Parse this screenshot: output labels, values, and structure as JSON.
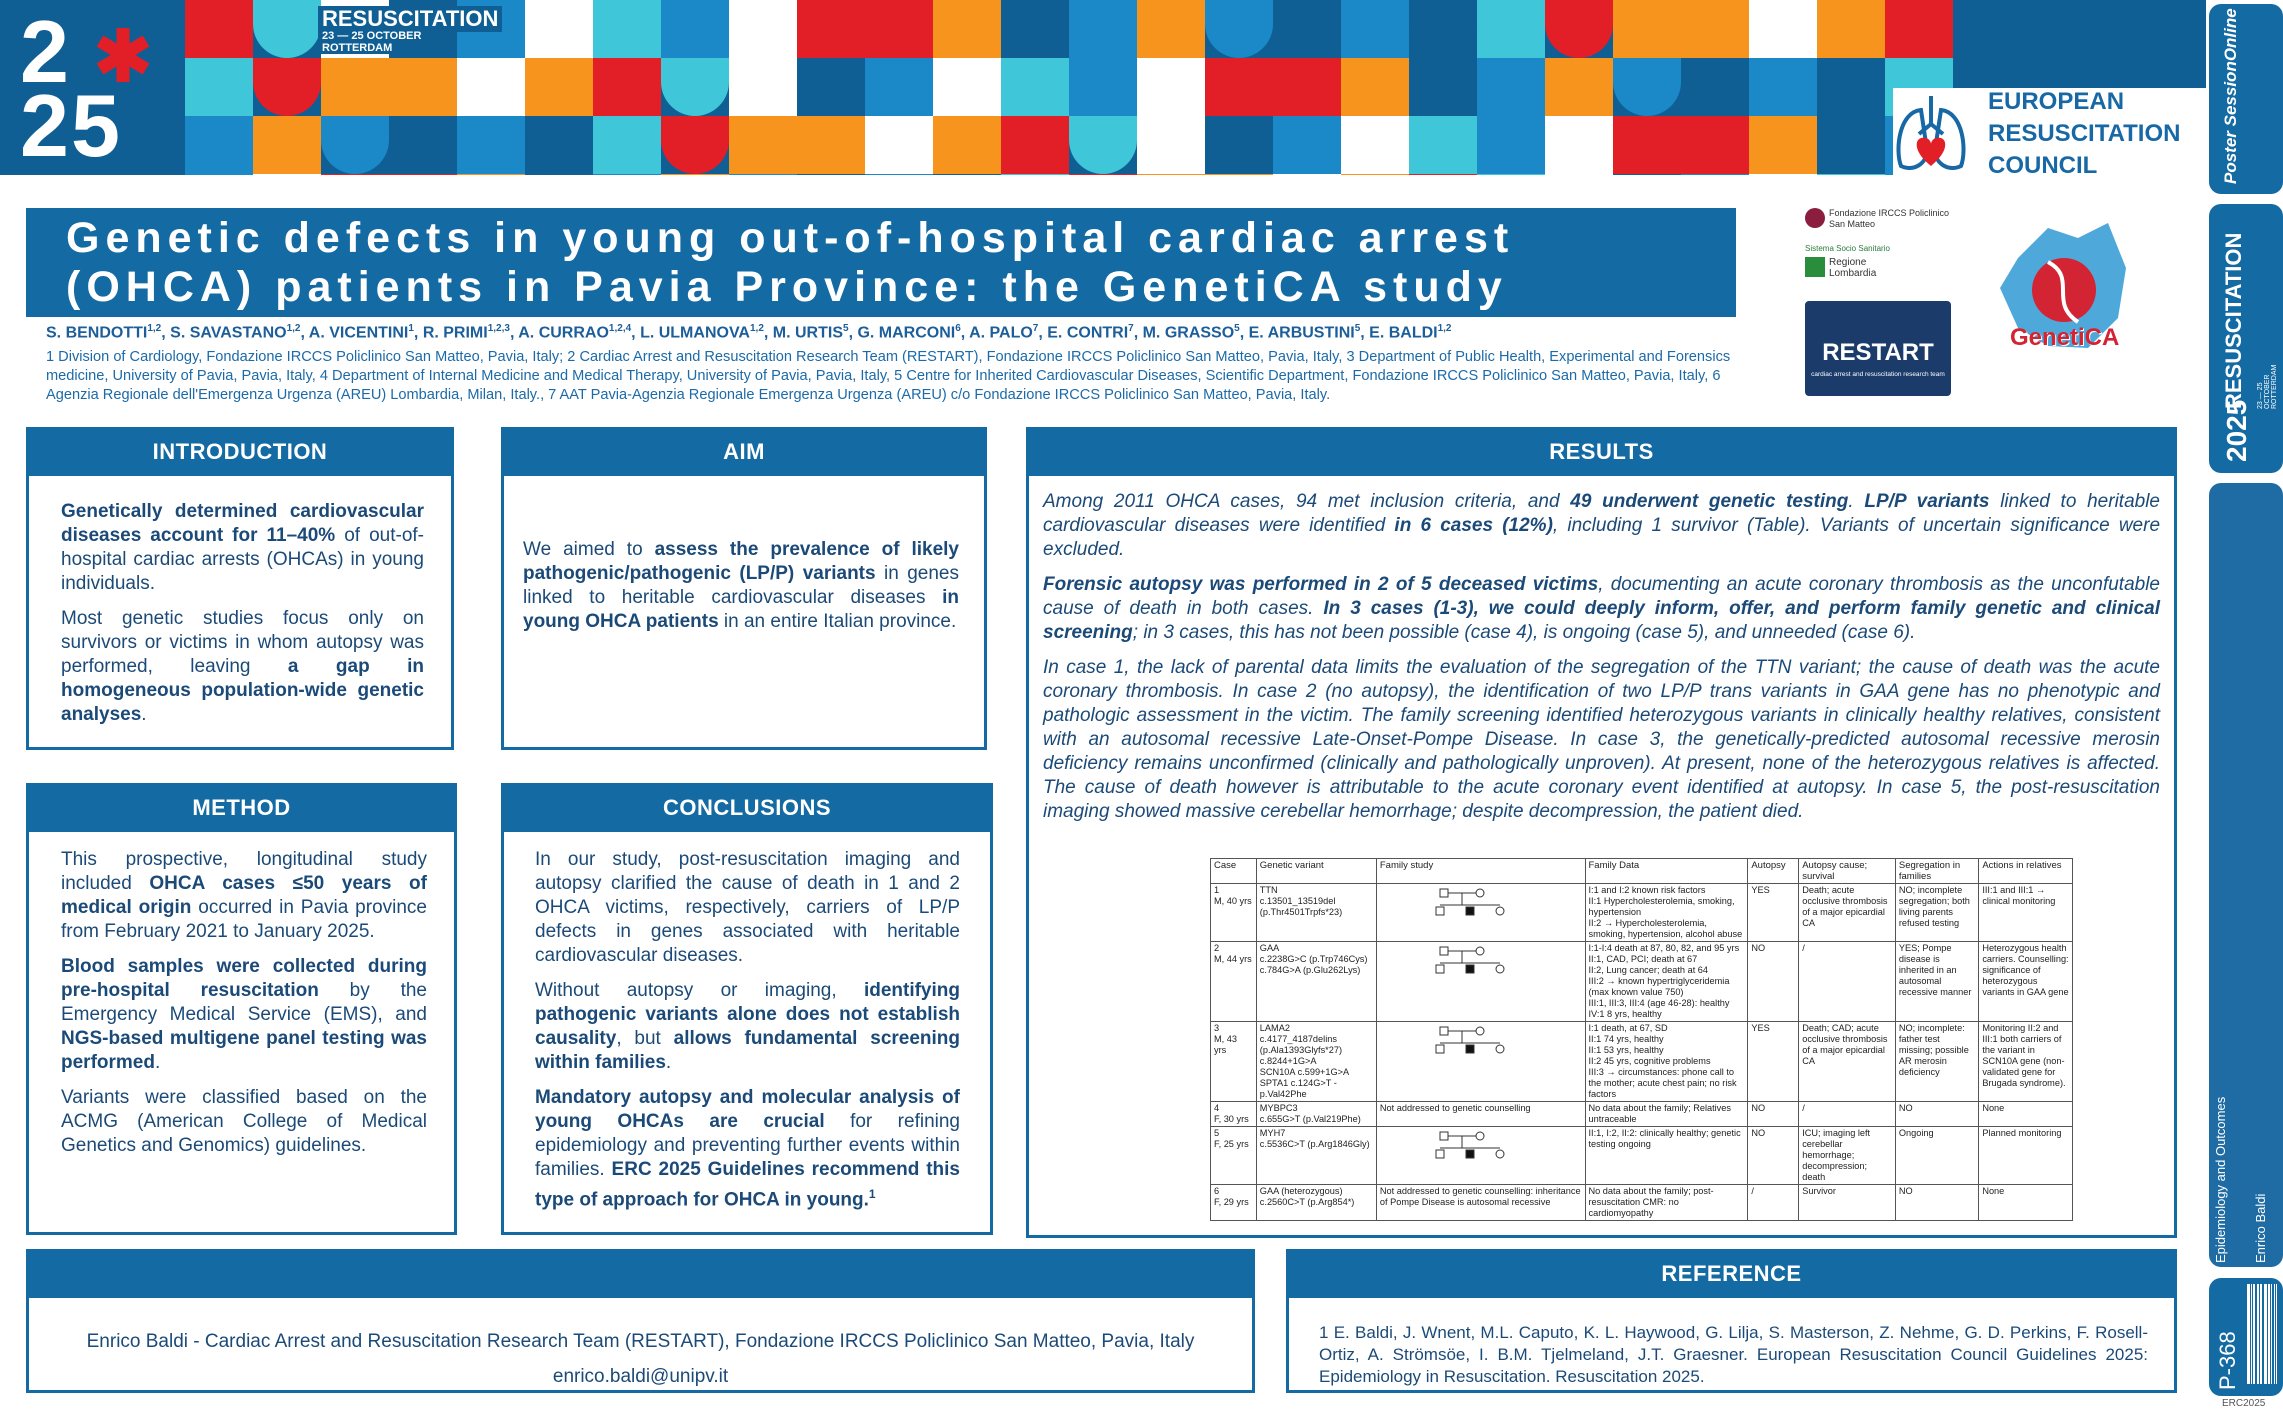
{
  "banner": {
    "year_top": "2",
    "year_bottom": "25",
    "event": "RESUSCITATION",
    "dates": "23 — 25 OCTOBER",
    "city": "ROTTERDAM"
  },
  "erc": {
    "line1": "EUROPEAN",
    "line2": "RESUSCITATION",
    "line3": "COUNCIL"
  },
  "title": {
    "line1": "Genetic defects in young out-of-hospital cardiac arrest",
    "line2": "(OHCA) patients in Pavia Province: the GenetiCA study"
  },
  "authors": [
    "S. BENDOTTI",
    {
      "sup": "1,2"
    },
    ", S. SAVASTANO",
    {
      "sup": "1,2"
    },
    ", A. VICENTINI",
    {
      "sup": "1"
    },
    ", R. PRIMI",
    {
      "sup": "1,2,3"
    },
    ", A. CURRAO",
    {
      "sup": "1,2,4"
    },
    ", L. ULMANOVA",
    {
      "sup": "1,2"
    },
    ", M. URTIS",
    {
      "sup": "5"
    },
    ", G. MARCONI",
    {
      "sup": "6"
    },
    ", A. PALO",
    {
      "sup": "7"
    },
    ", E. CONTRI",
    {
      "sup": "7"
    },
    ", M. GRASSO",
    {
      "sup": "5"
    },
    ", E. ARBUSTINI",
    {
      "sup": "5"
    },
    ", E. BALDI",
    {
      "sup": "1,2"
    }
  ],
  "affiliations": "1 Division of Cardiology, Fondazione IRCCS Policlinico San Matteo, Pavia, Italy; 2 Cardiac Arrest and Resuscitation Research Team (RESTART), Fondazione IRCCS Policlinico San Matteo, Pavia, Italy, 3 Department of Public Health, Experimental and Forensics medicine, University of Pavia, Pavia, Italy, 4 Department of Internal Medicine and Medical Therapy, University of Pavia, Pavia, Italy, 5 Centre for Inherited Cardiovascular Diseases, Scientific Department, Fondazione IRCCS Policlinico San Matteo, Pavia, Italy, 6 Agenzia Regionale dell'Emergenza Urgenza (AREU) Lombardia, Milan, Italy., 7 AAT Pavia-Agenzia Regionale Emergenza Urgenza (AREU) c/o Fondazione IRCCS Policlinico San Matteo, Pavia, Italy.",
  "logos": {
    "fondazione": "Fondazione IRCCS Policlinico San Matteo",
    "sistema": "Sistema Socio Sanitario",
    "regione": "Regione Lombardia",
    "restart": "RESTART",
    "restart_sub": "cardiac arrest and resuscitation research team",
    "genetica": "GenetiCA"
  },
  "introduction": {
    "heading": "INTRODUCTION",
    "paragraphs": [
      [
        {
          "b": "Genetically determined cardiovascular diseases account for 11–40%"
        },
        " of out-of-hospital cardiac arrests (OHCAs) in young individuals."
      ],
      [
        "Most genetic studies focus only on survivors or victims in whom autopsy was performed, leaving ",
        {
          "b": "a gap in homogeneous population-wide genetic analyses"
        },
        "."
      ]
    ]
  },
  "aim": {
    "heading": "AIM",
    "paragraphs": [
      [
        "We aimed to ",
        {
          "b": "assess the prevalence of likely pathogenic/pathogenic (LP/P) variants"
        },
        " in genes linked to heritable cardiovascular diseases ",
        {
          "b": "in young OHCA patients"
        },
        " in an entire Italian province."
      ]
    ]
  },
  "method": {
    "heading": "METHOD",
    "paragraphs": [
      [
        "This prospective, longitudinal study included ",
        {
          "b": "OHCA cases ≤50 years of medical origin"
        },
        " occurred in Pavia province from February 2021 to January 2025."
      ],
      [
        {
          "b": "Blood samples were collected during pre-hospital resuscitation"
        },
        " by the Emergency Medical Service (EMS), and ",
        {
          "b": "NGS-based multigene panel testing was performed"
        },
        "."
      ],
      [
        "Variants were classified based on the ACMG (American College of Medical Genetics and Genomics) guidelines."
      ]
    ]
  },
  "conclusions": {
    "heading": "CONCLUSIONS",
    "paragraphs": [
      [
        "In our study, post-resuscitation imaging and autopsy clarified the cause of death in 1 and 2 OHCA victims, respectively, carriers of LP/P defects in genes associated with heritable cardiovascular diseases."
      ],
      [
        "Without autopsy or imaging, ",
        {
          "b": "identifying pathogenic variants alone does not establish causality"
        },
        ", but ",
        {
          "b": "allows fundamental screening within families"
        },
        "."
      ],
      [
        {
          "b": "Mandatory autopsy and molecular analysis of young OHCAs are crucial"
        },
        " for refining epidemiology and preventing further events within families. ",
        {
          "b": "ERC 2025 Guidelines recommend this type of approach for OHCA in young."
        },
        {
          "sup": "1"
        }
      ]
    ]
  },
  "results": {
    "heading": "RESULTS",
    "paragraphs": [
      [
        "Among 2011 OHCA cases, 94 met inclusion criteria, and ",
        {
          "b": "49 underwent genetic testing"
        },
        ". ",
        {
          "b": "LP/P variants"
        },
        " linked to heritable cardiovascular diseases were identified ",
        {
          "b": "in 6 cases (12%)"
        },
        ", including 1 survivor (Table). Variants of uncertain significance were excluded."
      ],
      [
        {
          "b": "Forensic autopsy was performed in 2 of 5 deceased victims"
        },
        ", documenting an acute coronary thrombosis as the unconfutable cause of death in both cases. ",
        {
          "b": "In 3 cases (1-3), we could deeply inform, offer, and perform family genetic and clinical screening"
        },
        "; in 3 cases, this has not been possible (case 4), is ongoing (case 5), and unneeded (case 6)."
      ],
      [
        "In case 1, the lack of parental data limits the evaluation of the segregation of the TTN variant; the cause of death was the acute coronary thrombosis. In case 2 (no autopsy), the identification of two LP/P trans variants in GAA gene has no phenotypic and pathologic assessment in the victim. The family screening identified heterozygous variants in clinically healthy relatives, consistent with an autosomal recessive Late-Onset-Pompe Disease. In case 3, the genetically-predicted autosomal recessive merosin deficiency remains unconfirmed (clinically and pathologically unproven). At present, none of the heterozygous relatives is affected. The cause of death however is attributable to the acute coronary event identified at autopsy. In case 5, the post-resuscitation imaging showed massive cerebellar hemorrhage; despite decompression, the patient died."
      ]
    ],
    "table": {
      "header": [
        "Case",
        "Genetic variant",
        "Family study",
        "Family Data",
        "Autopsy",
        "Autopsy cause; survival",
        "Segregation in families",
        "Actions in relatives"
      ],
      "rows": [
        [
          "1\nM, 40 yrs",
          "TTN\nc.13501_13519del\n(p.Thr4501Trpfs*23)",
          null,
          "I:1 and I:2 known risk factors\nII:1 Hypercholesterolemia, smoking, hypertension\nII:2 → Hypercholesterolemia, smoking, hypertension, alcohol abuse",
          "YES",
          "Death; acute occlusive thrombosis of a major epicardial CA",
          "NO; incomplete segregation; both living parents refused testing",
          "III:1 and III:1 → clinical monitoring"
        ],
        [
          "2\nM, 44 yrs",
          "GAA\nc.2238G>C (p.Trp746Cys)\nc.784G>A (p.Glu262Lys)",
          null,
          "I:1-I:4 death at 87, 80, 82, and 95 yrs\nII:1, CAD, PCI; death at 67\nII:2, Lung cancer; death at 64\nIII:2 → known hypertriglyceridemia (max known value 750)\nIII:1, III:3, III:4 (age 46-28): healthy\nIV:1 8 yrs, healthy",
          "NO",
          "/",
          "YES; Pompe disease is inherited in an autosomal recessive manner",
          "Heterozygous health carriers. Counselling: significance of heterozygous variants in GAA gene"
        ],
        [
          "3\nM, 43\nyrs",
          "LAMA2\nc.4177_4187delins\n(p.Ala1393Glyfs*27)\nc.8244+1G>A\nSCN10A c.599+1G>A\nSPTA1 c.124G>T -\np.Val42Phe",
          null,
          "I:1 death, at 67, SD\nII:1 74 yrs, healthy\nII:1 53 yrs, healthy\nII:2 45 yrs, cognitive problems\nIII:3 → circumstances: phone call to the mother; acute chest pain; no risk factors",
          "YES",
          "Death; CAD; acute occlusive thrombosis of a major epicardial CA",
          "NO; incomplete: father test missing; possible AR merosin deficiency",
          "Monitoring II:2 and III:1 both carriers of the variant in SCN10A gene (non-validated gene for Brugada syndrome)."
        ],
        [
          "4\nF, 30 yrs",
          "MYBPC3\nc.655G>T (p.Val219Phe)",
          "Not addressed to genetic counselling",
          "No data about the family; Relatives untraceable",
          "NO",
          "/",
          "NO",
          "None"
        ],
        [
          "5\nF, 25 yrs",
          "MYH7\nc.5536C>T (p.Arg1846Gly)",
          null,
          "II:1, I:2, II:2: clinically healthy; genetic testing ongoing",
          "NO",
          "ICU; imaging left cerebellar hemorrhage; decompression; death",
          "Ongoing",
          "Planned monitoring"
        ],
        [
          "6\nF, 29 yrs",
          "GAA (heterozygous)\nc.2560C>T (p.Arg854*)",
          "Not addressed to genetic counselling: inheritance of Pompe Disease is autosomal recessive",
          "No data about the family; post-resuscitation CMR: no cardiomyopathy",
          "/",
          "Survivor",
          "NO",
          "None"
        ]
      ]
    }
  },
  "contact": {
    "line1": "Enrico Baldi - Cardiac Arrest and Resuscitation Research Team (RESTART), Fondazione IRCCS Policlinico San Matteo, Pavia, Italy",
    "email": "enrico.baldi@unipv.it"
  },
  "reference": {
    "heading": "REFERENCE",
    "text": "1 E. Baldi, J. Wnent, M.L. Caputo, K. L. Haywood, G. Lilja, S. Masterson, Z. Nehme, G. D. Perkins, F. Rosell-Ortiz, A. Strömsöe, I. B.M. Tjelmeland, J.T. Graesner. European Resuscitation Council Guidelines 2025: Epidemiology in Resuscitation. Resuscitation 2025."
  },
  "sidebar": {
    "poster_session": "Poster SessionOnline",
    "event": "RESUSCITATION",
    "year": "2025",
    "dates": "23 — 25 OCTOBER ROTTERDAM",
    "topic": "Epidemiology and Outcomes",
    "presenter": "Enrico Baldi",
    "code": "P-368",
    "edition": "ERC2025"
  }
}
